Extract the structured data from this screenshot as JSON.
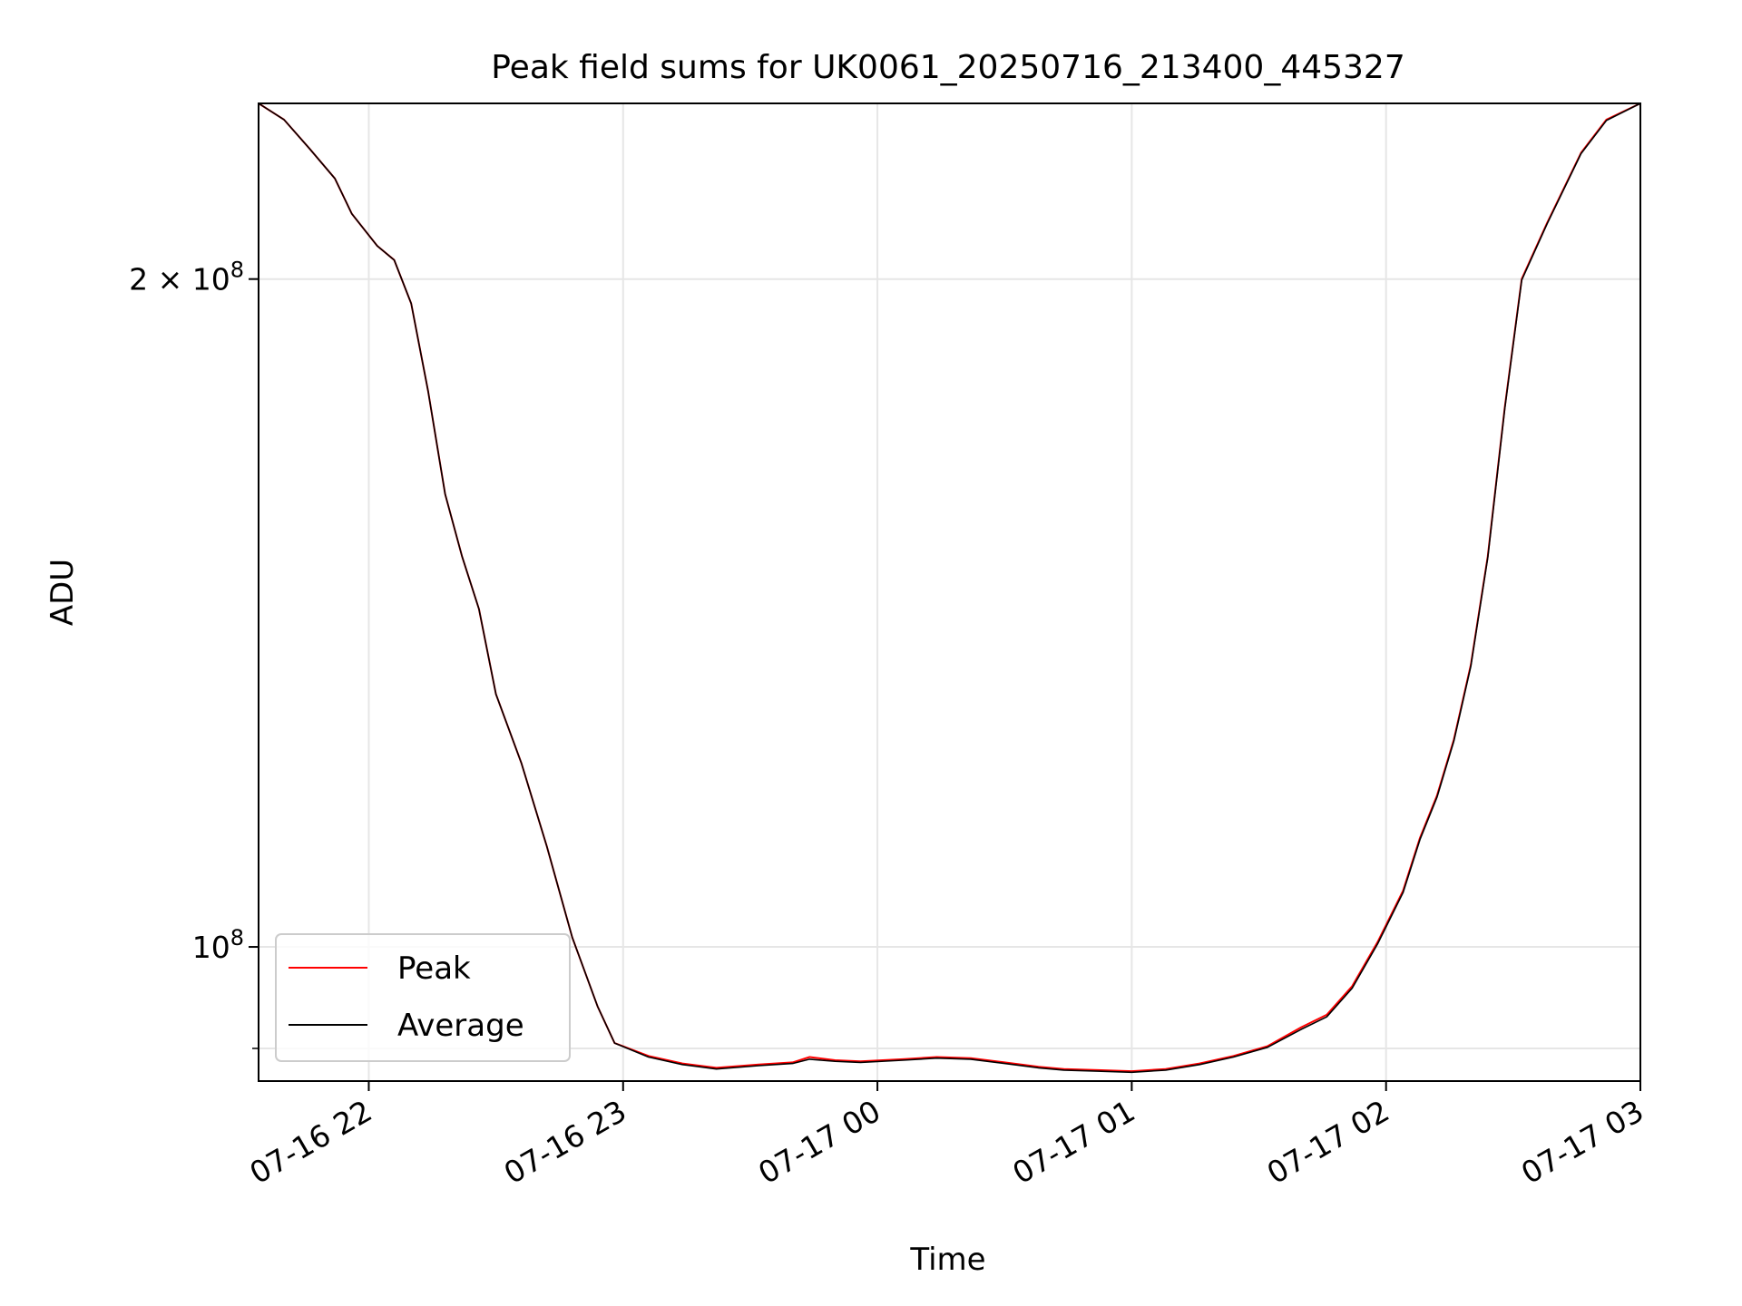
{
  "chart_data": {
    "type": "line",
    "title": "Peak field sums for UK0061_20250716_213400_445327",
    "xlabel": "Time",
    "ylabel": "ADU",
    "yscale": "log",
    "grid": true,
    "legend_position": "lower-left",
    "x_ticks": [
      {
        "time": "2025-07-16 22:00",
        "label": "07-16 22"
      },
      {
        "time": "2025-07-16 23:00",
        "label": "07-16 23"
      },
      {
        "time": "2025-07-17 00:00",
        "label": "07-17 00"
      },
      {
        "time": "2025-07-17 01:00",
        "label": "07-17 01"
      },
      {
        "time": "2025-07-17 02:00",
        "label": "07-17 02"
      },
      {
        "time": "2025-07-17 03:00",
        "label": "07-17 03"
      }
    ],
    "y_ticks": [
      {
        "value": 100000000,
        "base": "10",
        "exp": "8",
        "coef": ""
      },
      {
        "value": 200000000,
        "base": "10",
        "exp": "8",
        "coef": "2 × "
      }
    ],
    "y_minor_ticks": [
      90000000
    ],
    "xlim": [
      "2025-07-16 21:34",
      "2025-07-17 03:00"
    ],
    "ylim": [
      87000000,
      240000000
    ],
    "series": [
      {
        "name": "Peak",
        "color": "#ff0000",
        "points": [
          [
            "2025-07-16 21:34",
            240000000
          ],
          [
            "2025-07-16 21:40",
            236000000
          ],
          [
            "2025-07-16 21:46",
            229000000
          ],
          [
            "2025-07-16 21:52",
            222000000
          ],
          [
            "2025-07-16 21:56",
            214000000
          ],
          [
            "2025-07-16 22:02",
            207000000
          ],
          [
            "2025-07-16 22:06",
            204000000
          ],
          [
            "2025-07-16 22:10",
            195000000
          ],
          [
            "2025-07-16 22:14",
            178000000
          ],
          [
            "2025-07-16 22:18",
            160000000
          ],
          [
            "2025-07-16 22:22",
            150000000
          ],
          [
            "2025-07-16 22:26",
            142000000
          ],
          [
            "2025-07-16 22:30",
            130000000
          ],
          [
            "2025-07-16 22:36",
            121000000
          ],
          [
            "2025-07-16 22:42",
            111000000
          ],
          [
            "2025-07-16 22:48",
            101000000
          ],
          [
            "2025-07-16 22:54",
            94000000
          ],
          [
            "2025-07-16 22:58",
            90500000
          ],
          [
            "2025-07-16 23:06",
            89300000
          ],
          [
            "2025-07-16 23:14",
            88600000
          ],
          [
            "2025-07-16 23:22",
            88200000
          ],
          [
            "2025-07-16 23:32",
            88500000
          ],
          [
            "2025-07-16 23:40",
            88700000
          ],
          [
            "2025-07-16 23:44",
            89200000
          ],
          [
            "2025-07-16 23:50",
            88900000
          ],
          [
            "2025-07-16 23:56",
            88800000
          ],
          [
            "2025-07-17 00:06",
            89000000
          ],
          [
            "2025-07-17 00:14",
            89200000
          ],
          [
            "2025-07-17 00:22",
            89100000
          ],
          [
            "2025-07-17 00:30",
            88700000
          ],
          [
            "2025-07-17 00:38",
            88300000
          ],
          [
            "2025-07-17 00:44",
            88100000
          ],
          [
            "2025-07-17 00:52",
            88000000
          ],
          [
            "2025-07-17 01:00",
            87900000
          ],
          [
            "2025-07-17 01:08",
            88100000
          ],
          [
            "2025-07-17 01:16",
            88600000
          ],
          [
            "2025-07-17 01:24",
            89300000
          ],
          [
            "2025-07-17 01:32",
            90200000
          ],
          [
            "2025-07-17 01:40",
            92000000
          ],
          [
            "2025-07-17 01:46",
            93200000
          ],
          [
            "2025-07-17 01:52",
            96000000
          ],
          [
            "2025-07-17 01:58",
            100500000
          ],
          [
            "2025-07-17 02:04",
            106000000
          ],
          [
            "2025-07-17 02:08",
            112000000
          ],
          [
            "2025-07-17 02:12",
            117000000
          ],
          [
            "2025-07-17 02:16",
            124000000
          ],
          [
            "2025-07-17 02:20",
            134000000
          ],
          [
            "2025-07-17 02:24",
            150000000
          ],
          [
            "2025-07-17 02:28",
            175000000
          ],
          [
            "2025-07-17 02:32",
            200000000
          ],
          [
            "2025-07-17 02:38",
            212000000
          ],
          [
            "2025-07-17 02:46",
            228000000
          ],
          [
            "2025-07-17 02:52",
            236000000
          ],
          [
            "2025-07-17 03:00",
            240000000
          ]
        ]
      },
      {
        "name": "Average",
        "color": "#000000",
        "points": [
          [
            "2025-07-16 21:34",
            240000000
          ],
          [
            "2025-07-16 21:40",
            236000000
          ],
          [
            "2025-07-16 21:46",
            229000000
          ],
          [
            "2025-07-16 21:52",
            222000000
          ],
          [
            "2025-07-16 21:56",
            214000000
          ],
          [
            "2025-07-16 22:02",
            207000000
          ],
          [
            "2025-07-16 22:06",
            204000000
          ],
          [
            "2025-07-16 22:10",
            195000000
          ],
          [
            "2025-07-16 22:14",
            178000000
          ],
          [
            "2025-07-16 22:18",
            160000000
          ],
          [
            "2025-07-16 22:22",
            150000000
          ],
          [
            "2025-07-16 22:26",
            142000000
          ],
          [
            "2025-07-16 22:30",
            130000000
          ],
          [
            "2025-07-16 22:36",
            121000000
          ],
          [
            "2025-07-16 22:42",
            111000000
          ],
          [
            "2025-07-16 22:48",
            101000000
          ],
          [
            "2025-07-16 22:54",
            94000000
          ],
          [
            "2025-07-16 22:58",
            90500000
          ],
          [
            "2025-07-16 23:06",
            89200000
          ],
          [
            "2025-07-16 23:14",
            88500000
          ],
          [
            "2025-07-16 23:22",
            88100000
          ],
          [
            "2025-07-16 23:32",
            88400000
          ],
          [
            "2025-07-16 23:40",
            88600000
          ],
          [
            "2025-07-16 23:44",
            89000000
          ],
          [
            "2025-07-16 23:50",
            88800000
          ],
          [
            "2025-07-16 23:56",
            88700000
          ],
          [
            "2025-07-17 00:06",
            88900000
          ],
          [
            "2025-07-17 00:14",
            89100000
          ],
          [
            "2025-07-17 00:22",
            89000000
          ],
          [
            "2025-07-17 00:30",
            88600000
          ],
          [
            "2025-07-17 00:38",
            88200000
          ],
          [
            "2025-07-17 00:44",
            88000000
          ],
          [
            "2025-07-17 00:52",
            87900000
          ],
          [
            "2025-07-17 01:00",
            87800000
          ],
          [
            "2025-07-17 01:08",
            88000000
          ],
          [
            "2025-07-17 01:16",
            88500000
          ],
          [
            "2025-07-17 01:24",
            89200000
          ],
          [
            "2025-07-17 01:32",
            90100000
          ],
          [
            "2025-07-17 01:40",
            91800000
          ],
          [
            "2025-07-17 01:46",
            93000000
          ],
          [
            "2025-07-17 01:52",
            95800000
          ],
          [
            "2025-07-17 01:58",
            100300000
          ],
          [
            "2025-07-17 02:04",
            105800000
          ],
          [
            "2025-07-17 02:08",
            111800000
          ],
          [
            "2025-07-17 02:12",
            116800000
          ],
          [
            "2025-07-17 02:16",
            123800000
          ],
          [
            "2025-07-17 02:20",
            133800000
          ],
          [
            "2025-07-17 02:24",
            149800000
          ],
          [
            "2025-07-17 02:28",
            174800000
          ],
          [
            "2025-07-17 02:32",
            199800000
          ],
          [
            "2025-07-17 02:38",
            211800000
          ],
          [
            "2025-07-17 02:46",
            227800000
          ],
          [
            "2025-07-17 02:52",
            235800000
          ],
          [
            "2025-07-17 03:00",
            240000000
          ]
        ]
      }
    ]
  }
}
